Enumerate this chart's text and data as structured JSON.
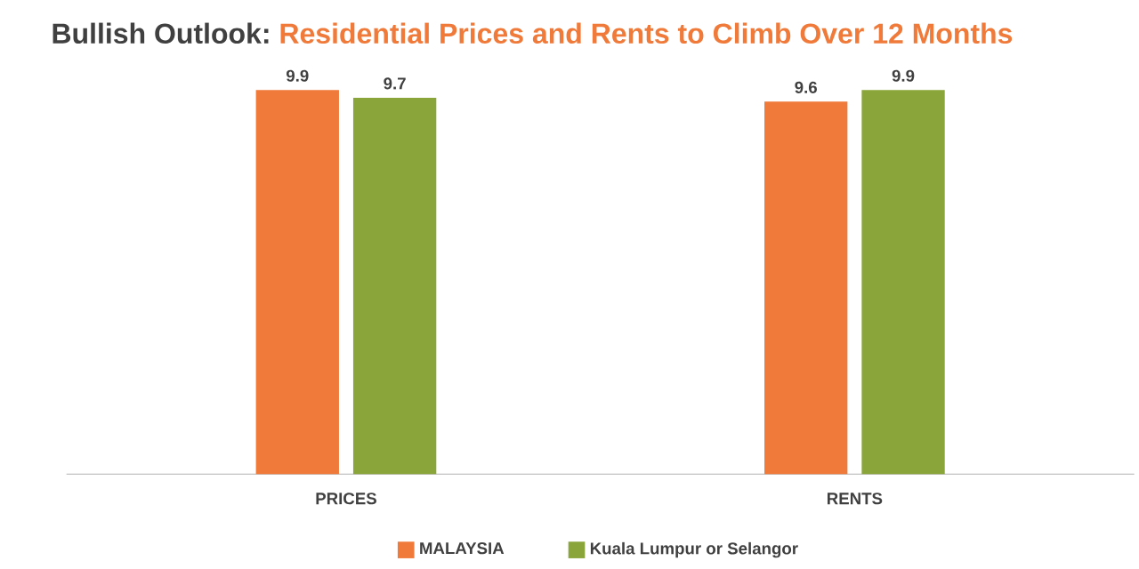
{
  "chart_data": {
    "type": "bar",
    "title": "Bullish Outlook:",
    "subtitle": "Residential Prices and Rents to Climb Over 12 Months",
    "categories": [
      "PRICES",
      "RENTS"
    ],
    "series": [
      {
        "name": "MALAYSIA",
        "color": "#f07a3a",
        "values": [
          9.9,
          9.6
        ]
      },
      {
        "name": "Kuala Lumpur or Selangor",
        "color": "#8aa53a",
        "values": [
          9.7,
          9.9
        ]
      }
    ],
    "data_labels": true,
    "legend": "bottom",
    "tick_labels": "x"
  }
}
